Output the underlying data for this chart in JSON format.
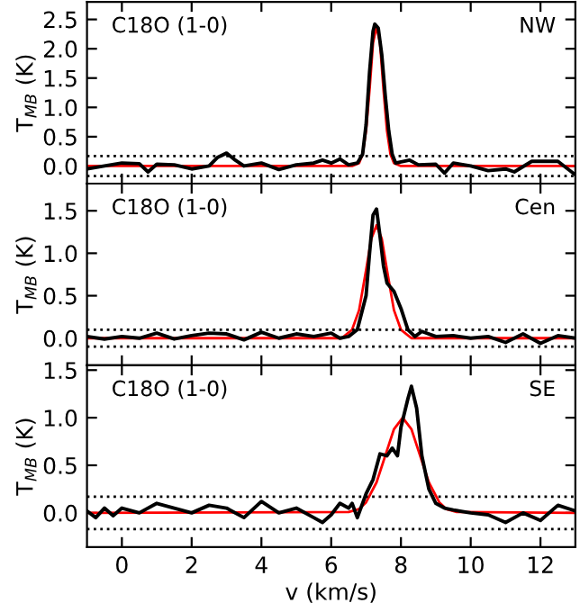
{
  "chart_data": [
    {
      "type": "line",
      "ylabel": "T$_{MB}$ (K)",
      "annotations": [
        "C18O (1-0)",
        "NW"
      ],
      "xlim": [
        -1,
        13
      ],
      "ylim": [
        -0.3,
        2.8
      ],
      "xticks": [
        0,
        2,
        4,
        6,
        8,
        10,
        12
      ],
      "yticks": [
        {
          "value": 0,
          "label": "0.0"
        },
        0.5,
        {
          "value": 1,
          "label": "1.0"
        },
        1.5,
        {
          "value": 2,
          "label": "2.0"
        },
        2.5
      ],
      "tick_labels": "y",
      "grid": false,
      "legend": false,
      "line_style": "solid",
      "ref_lines": [
        {
          "axis": "y",
          "value": 0.17,
          "color": "#000000",
          "line_style": "dotted"
        },
        {
          "axis": "y",
          "value": -0.17,
          "color": "#000000",
          "line_style": "dotted"
        }
      ],
      "series": [
        {
          "color": "#ff0000",
          "x": [
            -1,
            6.6,
            6.8,
            6.9,
            7.0,
            7.1,
            7.2,
            7.3,
            7.4,
            7.5,
            7.6,
            7.7,
            7.8,
            8.0,
            13
          ],
          "values": [
            0,
            0,
            0.05,
            0.2,
            0.6,
            1.3,
            2.1,
            2.38,
            2.1,
            1.3,
            0.6,
            0.2,
            0.05,
            0,
            0
          ]
        },
        {
          "color": "#000000",
          "x": [
            -1,
            -0.5,
            0,
            0.5,
            0.75,
            1,
            1.5,
            2,
            2.5,
            2.75,
            3,
            3.25,
            3.5,
            4,
            4.5,
            5,
            5.5,
            5.75,
            6,
            6.25,
            6.5,
            6.75,
            6.9,
            7.0,
            7.1,
            7.2,
            7.25,
            7.35,
            7.45,
            7.55,
            7.65,
            7.75,
            7.85,
            8.25,
            8.5,
            9,
            9.25,
            9.5,
            10,
            10.5,
            11,
            11.25,
            11.75,
            12,
            12.5,
            13
          ],
          "values": [
            -0.05,
            0.0,
            0.05,
            0.04,
            -0.1,
            0.03,
            0.02,
            -0.05,
            0.0,
            0.15,
            0.22,
            0.1,
            0.0,
            0.05,
            -0.06,
            0.02,
            0.05,
            0.1,
            0.05,
            0.12,
            0.02,
            0.05,
            0.2,
            0.7,
            1.6,
            2.3,
            2.42,
            2.35,
            1.9,
            1.2,
            0.6,
            0.2,
            0.05,
            0.1,
            0.02,
            0.03,
            -0.12,
            0.05,
            0.0,
            -0.08,
            -0.05,
            -0.1,
            0.08,
            0.08,
            0.08,
            -0.15
          ]
        }
      ]
    },
    {
      "type": "line",
      "ylabel": "T$_{MB}$ (K)",
      "annotations": [
        "C18O (1-0)",
        "Cen"
      ],
      "xlim": [
        -1,
        13
      ],
      "ylim": [
        -0.32,
        1.82
      ],
      "xticks": [
        0,
        2,
        4,
        6,
        8,
        10,
        12
      ],
      "yticks": [
        {
          "value": 0,
          "label": "0.0"
        },
        0.5,
        {
          "value": 1,
          "label": "1.0"
        },
        1.5
      ],
      "tick_labels": "y",
      "grid": false,
      "legend": false,
      "line_style": "solid",
      "ref_lines": [
        {
          "axis": "y",
          "value": 0.1,
          "color": "#000000",
          "line_style": "dotted"
        },
        {
          "axis": "y",
          "value": -0.1,
          "color": "#000000",
          "line_style": "dotted"
        }
      ],
      "series": [
        {
          "color": "#ff0000",
          "x": [
            -1,
            6.3,
            6.6,
            6.8,
            7.0,
            7.15,
            7.3,
            7.45,
            7.6,
            7.8,
            8.0,
            8.3,
            13
          ],
          "values": [
            0,
            0,
            0.1,
            0.33,
            0.8,
            1.17,
            1.33,
            1.17,
            0.8,
            0.33,
            0.1,
            0,
            0
          ]
        },
        {
          "color": "#000000",
          "x": [
            -1,
            -0.5,
            0,
            0.5,
            1,
            1.5,
            2,
            2.5,
            3,
            3.5,
            4,
            4.5,
            5,
            5.5,
            6,
            6.25,
            6.5,
            6.75,
            7.0,
            7.1,
            7.2,
            7.3,
            7.4,
            7.5,
            7.6,
            7.8,
            8.0,
            8.2,
            8.4,
            8.6,
            9,
            9.5,
            10,
            10.5,
            11,
            11.5,
            12,
            12.5,
            13
          ],
          "values": [
            0.02,
            -0.01,
            0.02,
            0.0,
            0.06,
            -0.01,
            0.03,
            0.06,
            0.05,
            -0.02,
            0.07,
            0.0,
            0.05,
            0.02,
            0.06,
            0.0,
            0.02,
            0.1,
            0.5,
            1.0,
            1.45,
            1.52,
            1.2,
            0.85,
            0.65,
            0.55,
            0.35,
            0.1,
            0.02,
            0.08,
            0.02,
            0.03,
            0.0,
            0.02,
            -0.05,
            0.05,
            -0.06,
            0.03,
            0.0
          ]
        }
      ]
    },
    {
      "type": "line",
      "ylabel": "T$_{MB}$ (K)",
      "xlabel": "v (km/s)",
      "annotations": [
        "C18O (1-0)",
        "SE"
      ],
      "xlim": [
        -1,
        13
      ],
      "ylim": [
        -0.36,
        1.55
      ],
      "xticks": [
        0,
        2,
        4,
        6,
        8,
        10,
        12
      ],
      "yticks": [
        {
          "value": 0,
          "label": "0.0"
        },
        0.5,
        {
          "value": 1,
          "label": "1.0"
        },
        1.5
      ],
      "grid": false,
      "legend": false,
      "line_style": "solid",
      "ref_lines": [
        {
          "axis": "y",
          "value": 0.17,
          "color": "#000000",
          "line_style": "dotted"
        },
        {
          "axis": "y",
          "value": -0.17,
          "color": "#000000",
          "line_style": "dotted"
        }
      ],
      "series": [
        {
          "color": "#ff0000",
          "x": [
            -1,
            6.5,
            6.8,
            7.0,
            7.3,
            7.55,
            7.8,
            8.05,
            8.3,
            8.55,
            8.8,
            9.1,
            9.3,
            9.6,
            13
          ],
          "values": [
            0,
            0.01,
            0.04,
            0.11,
            0.32,
            0.6,
            0.88,
            1.0,
            0.88,
            0.6,
            0.32,
            0.11,
            0.04,
            0.01,
            0
          ]
        },
        {
          "color": "#000000",
          "x": [
            -1,
            -0.75,
            -0.5,
            -0.25,
            0,
            0.5,
            1,
            1.5,
            2,
            2.5,
            3,
            3.5,
            4,
            4.5,
            5,
            5.5,
            5.75,
            6,
            6.25,
            6.5,
            6.6,
            6.75,
            7.0,
            7.2,
            7.4,
            7.6,
            7.75,
            7.9,
            8.0,
            8.2,
            8.3,
            8.45,
            8.6,
            8.8,
            9.0,
            9.25,
            9.5,
            10,
            10.5,
            11,
            11.5,
            12,
            12.5,
            13
          ],
          "values": [
            0.02,
            -0.05,
            0.05,
            -0.03,
            0.05,
            0.0,
            0.1,
            0.05,
            0.0,
            0.08,
            0.05,
            -0.05,
            0.12,
            0.0,
            0.05,
            -0.05,
            -0.1,
            -0.02,
            0.1,
            0.05,
            0.1,
            -0.05,
            0.2,
            0.35,
            0.62,
            0.6,
            0.68,
            0.6,
            0.9,
            1.2,
            1.33,
            1.1,
            0.6,
            0.25,
            0.1,
            0.05,
            0.03,
            0.0,
            -0.02,
            -0.1,
            0.0,
            -0.08,
            0.08,
            0.02
          ]
        }
      ]
    }
  ]
}
